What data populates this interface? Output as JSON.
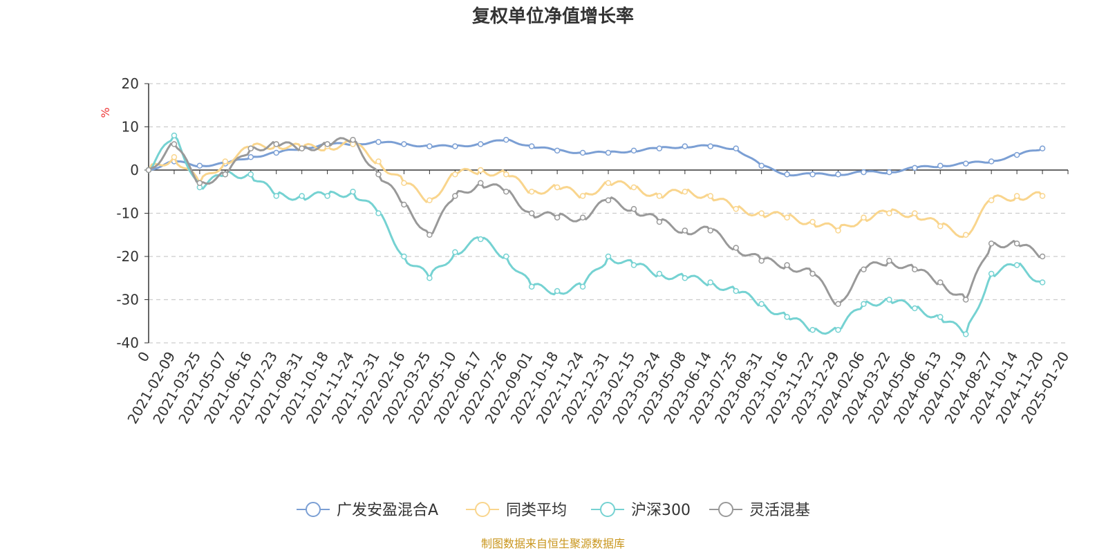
{
  "chart_data": {
    "type": "line",
    "title": "复权单位净值增长率",
    "ylabel": "%",
    "ylim": [
      -40,
      20
    ],
    "yticks": [
      "20",
      "10",
      "0",
      "-10",
      "-20",
      "-30",
      "-40"
    ],
    "grid": true,
    "legend_position": "bottom",
    "x_start_label": "0",
    "categories": [
      "2021-02-09",
      "2021-03-25",
      "2021-05-07",
      "2021-06-16",
      "2021-07-23",
      "2021-08-31",
      "2021-10-18",
      "2021-11-24",
      "2021-12-31",
      "2022-02-16",
      "2022-03-25",
      "2022-05-10",
      "2022-06-17",
      "2022-07-26",
      "2022-09-01",
      "2022-10-18",
      "2022-11-24",
      "2022-12-31",
      "2023-02-15",
      "2023-03-24",
      "2023-05-08",
      "2023-06-14",
      "2023-07-25",
      "2023-08-31",
      "2023-10-16",
      "2023-11-22",
      "2023-12-29",
      "2024-02-06",
      "2024-03-22",
      "2024-05-06",
      "2024-06-13",
      "2024-07-19",
      "2024-08-27",
      "2024-10-14",
      "2024-11-20",
      "2025-01-20"
    ],
    "series": [
      {
        "name": "广发安盈混合A",
        "color": "#7b9fd4",
        "values": [
          0,
          2,
          1,
          1.5,
          3,
          4,
          5,
          6,
          6,
          6.5,
          6,
          5.5,
          5.5,
          6,
          7,
          5.5,
          4.5,
          4,
          4,
          4.5,
          5,
          5.5,
          5.5,
          5,
          1,
          -1,
          -1,
          -1,
          -0.5,
          -0.5,
          0.5,
          1,
          1.5,
          2,
          3.5,
          5
        ]
      },
      {
        "name": "同类平均",
        "color": "#f9d58d",
        "values": [
          0,
          3,
          -3,
          2,
          5,
          6,
          5,
          5.5,
          6,
          2,
          -3,
          -7,
          -1,
          0,
          -1,
          -5,
          -4,
          -6,
          -3,
          -4,
          -6,
          -5,
          -6,
          -9,
          -10,
          -11,
          -12,
          -14,
          -11,
          -10,
          -10,
          -13,
          -15,
          -7,
          -6,
          -6
        ]
      },
      {
        "name": "沪深300",
        "color": "#75d2d2",
        "values": [
          0,
          8,
          -4,
          -1,
          -1,
          -6,
          -6,
          -6,
          -5,
          -10,
          -20,
          -25,
          -19,
          -16,
          -20,
          -27,
          -28,
          -27,
          -20,
          -22,
          -24,
          -25,
          -26,
          -28,
          -31,
          -34,
          -37,
          -37,
          -31,
          -30,
          -32,
          -34,
          -38,
          -24,
          -22,
          -26
        ]
      },
      {
        "name": "灵活混基",
        "color": "#999999",
        "values": [
          0,
          6,
          -3,
          -1,
          5,
          6,
          5,
          6,
          7,
          -1,
          -8,
          -15,
          -6,
          -3,
          -5,
          -10,
          -11,
          -11,
          -7,
          -9,
          -12,
          -14,
          -14,
          -18,
          -21,
          -22,
          -24,
          -31,
          -23,
          -21,
          -23,
          -26,
          -30,
          -17,
          -17,
          -20
        ]
      }
    ]
  },
  "footer": {
    "source_text": "制图数据来自恒生聚源数据库",
    "color": "#c9961e"
  }
}
